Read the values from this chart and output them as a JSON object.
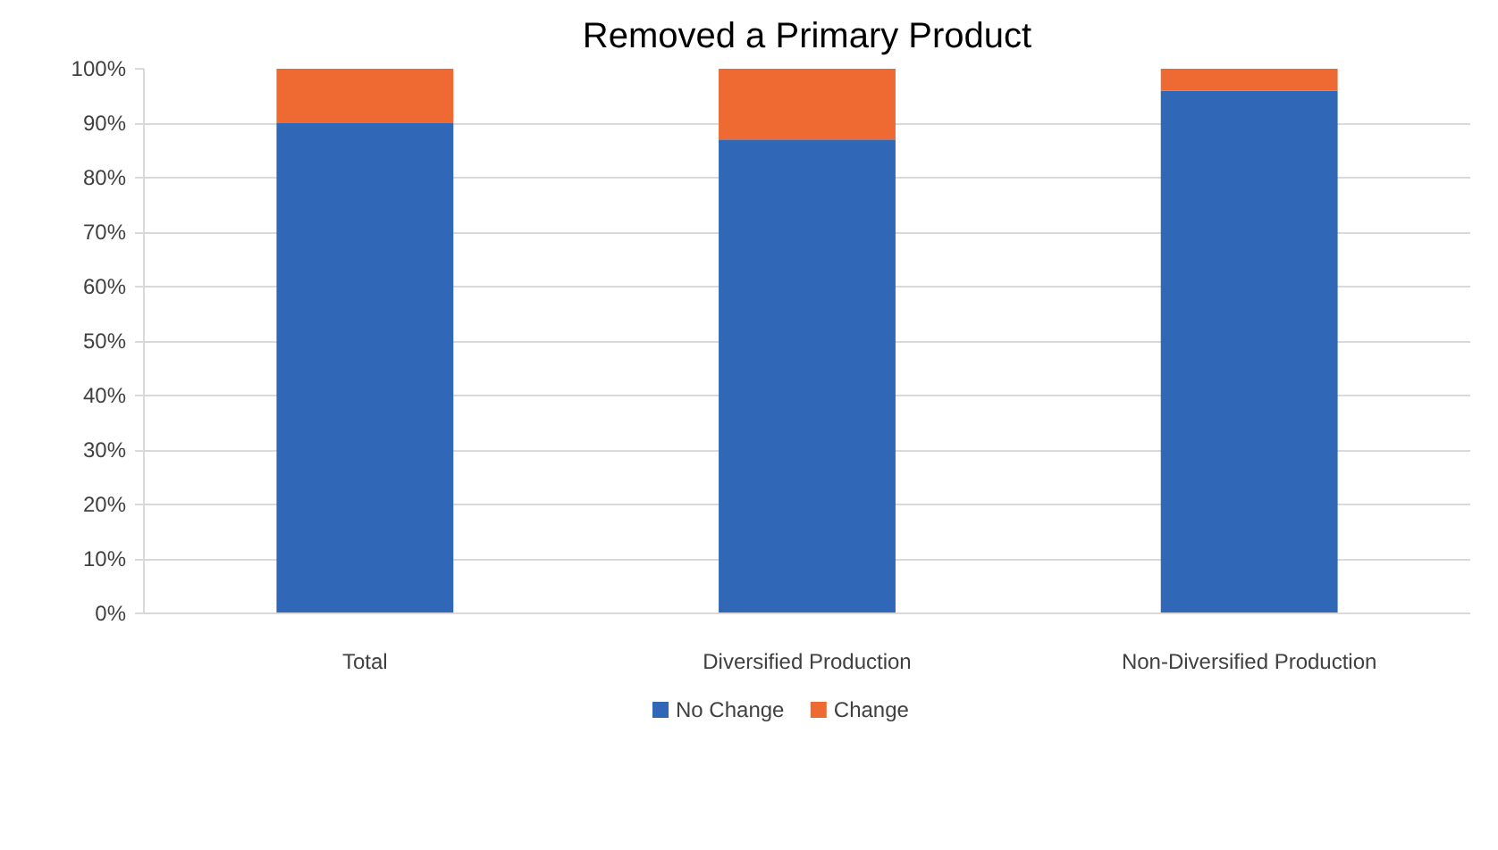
{
  "chart_data": {
    "type": "bar",
    "title": "Removed a Primary Product",
    "categories": [
      "Total",
      "Diversified Production",
      "Non-Diversified Production"
    ],
    "series": [
      {
        "name": "No Change",
        "color": "#3068b7",
        "values": [
          90,
          87,
          96
        ]
      },
      {
        "name": "Change",
        "color": "#ef6a32",
        "values": [
          10,
          13,
          4
        ]
      }
    ],
    "stacked": true,
    "ylim": [
      0,
      100
    ],
    "yticks": [
      {
        "value": 0,
        "label": "0%"
      },
      {
        "value": 10,
        "label": "10%"
      },
      {
        "value": 20,
        "label": "20%"
      },
      {
        "value": 30,
        "label": "30%"
      },
      {
        "value": 40,
        "label": "40%"
      },
      {
        "value": 50,
        "label": "50%"
      },
      {
        "value": 60,
        "label": "60%"
      },
      {
        "value": 70,
        "label": "70%"
      },
      {
        "value": 80,
        "label": "80%"
      },
      {
        "value": 90,
        "label": "90%"
      },
      {
        "value": 100,
        "label": "100%"
      }
    ],
    "grid": "y",
    "legend": "bottom"
  }
}
